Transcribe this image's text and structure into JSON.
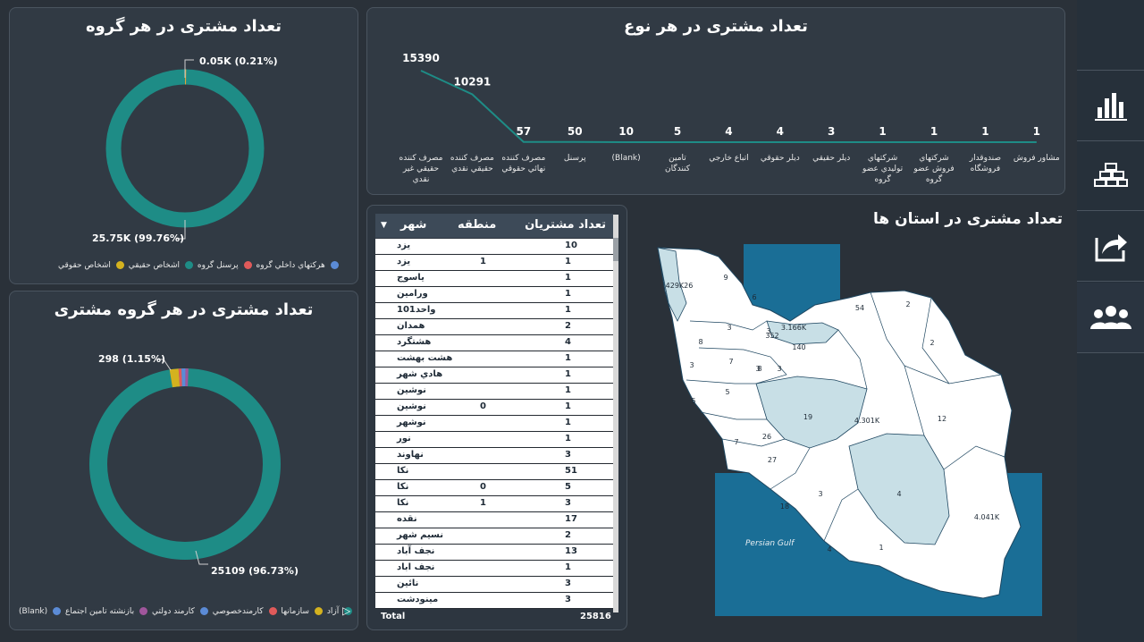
{
  "panel_group": {
    "title": "تعداد مشتری در هر گروه",
    "label_top": "0.05K (0.21%)",
    "label_bottom": "25.75K (99.76%)",
    "legend": [
      {
        "label": "هرکتهاي داخلي گروه",
        "color": "#5b8bd6"
      },
      {
        "label": "پرسنل گروه",
        "color": "#e05a5a"
      },
      {
        "label": "اشخاص حقيقي",
        "color": "#1e8c86"
      },
      {
        "label": "اشخاص حقوقي",
        "color": "#d4b21f"
      }
    ]
  },
  "panel_customer_group": {
    "title": "تعداد مشتری در هر گروه مشتری",
    "label_top": "298 (1.15%)",
    "label_bottom": "25109 (96.73%)",
    "legend": [
      {
        "label": "آزاد",
        "color": "#1e8c86"
      },
      {
        "label": "سازمانها",
        "color": "#d4b21f"
      },
      {
        "label": "كارمندخصوصي",
        "color": "#e05a5a"
      },
      {
        "label": "كارمند دولتي",
        "color": "#5b8bd6"
      },
      {
        "label": "بازنشته تامين اجتماع",
        "color": "#a0569c"
      },
      {
        "label": "(Blank)",
        "color": "#5b8bd6"
      }
    ]
  },
  "panel_type": {
    "title": "تعداد مشتری در هر نوع",
    "chart_data": {
      "type": "line",
      "categories": [
        "مصرف كننده حقيقي غير نقدي",
        "مصرف كننده حقيقي نقدي",
        "مصرف كننده نهائي حقوقي",
        "پرسنل",
        "(Blank)",
        "تامين كنندگان",
        "اتباع خارجي",
        "ديلر حقوقي",
        "ديلر حقيقي",
        "شركتهاي توليدي عضو گروه",
        "شركتهاي فروش عضو گروه",
        "صندوقدار فروشگاه",
        "مشاور فروش"
      ],
      "values": [
        15390,
        10291,
        57,
        50,
        10,
        5,
        4,
        4,
        3,
        1,
        1,
        1,
        1
      ],
      "value_labels": [
        "15390",
        "10291",
        "57",
        "50",
        "10",
        "5",
        "4",
        "4",
        "3",
        "1",
        "1",
        "1",
        "1"
      ]
    }
  },
  "table": {
    "headers": {
      "city": "شهر",
      "region": "منطقه",
      "count": "تعداد مشتریان"
    },
    "rows": [
      {
        "city": "يزد",
        "region": "",
        "count": "10"
      },
      {
        "city": "يزد",
        "region": "1",
        "count": "1"
      },
      {
        "city": "ياسوج",
        "region": "",
        "count": "1"
      },
      {
        "city": "ورامين",
        "region": "",
        "count": "1"
      },
      {
        "city": "واحد101",
        "region": "",
        "count": "1"
      },
      {
        "city": "همدان",
        "region": "",
        "count": "2"
      },
      {
        "city": "هشتگرد",
        "region": "",
        "count": "4"
      },
      {
        "city": "هشت بهشت",
        "region": "",
        "count": "1"
      },
      {
        "city": "هادي شهر",
        "region": "",
        "count": "1"
      },
      {
        "city": "نوشين",
        "region": "",
        "count": "1"
      },
      {
        "city": "نوشين",
        "region": "0",
        "count": "1"
      },
      {
        "city": "نوشهر",
        "region": "",
        "count": "1"
      },
      {
        "city": "نور",
        "region": "",
        "count": "1"
      },
      {
        "city": "نهاوند",
        "region": "",
        "count": "3"
      },
      {
        "city": "نكا",
        "region": "",
        "count": "51"
      },
      {
        "city": "نكا",
        "region": "0",
        "count": "5"
      },
      {
        "city": "نكا",
        "region": "1",
        "count": "3"
      },
      {
        "city": "نقده",
        "region": "",
        "count": "17"
      },
      {
        "city": "نسيم شهر",
        "region": "",
        "count": "2"
      },
      {
        "city": "نجف آباد",
        "region": "",
        "count": "13"
      },
      {
        "city": "نجف اباد",
        "region": "",
        "count": "1"
      },
      {
        "city": "نائين",
        "region": "",
        "count": "3"
      },
      {
        "city": "مينودشت",
        "region": "",
        "count": "3"
      }
    ],
    "total_label": "Total",
    "total_value": "25816"
  },
  "map": {
    "title": "تعداد مشتری در استان ها",
    "sea_label": "Persian Gulf",
    "labels": [
      "429K26",
      "9",
      "6",
      "54",
      "2",
      "3",
      "3",
      "3.166K",
      "352",
      "140",
      "8",
      "7",
      "3",
      "8",
      "3",
      "3",
      "5",
      "5",
      "2",
      "19",
      "4.301K",
      "12",
      "7",
      "26",
      "27",
      "3",
      "18",
      "4",
      "4.041K",
      "1",
      "4"
    ]
  },
  "sidebar": {
    "icons": [
      "bar-chart-icon",
      "stack-icon",
      "share-icon",
      "users-icon"
    ]
  },
  "colors": {
    "teal": "#1e8c86",
    "map_dark": "#1a6e96",
    "map_light": "#c8dfe6"
  }
}
